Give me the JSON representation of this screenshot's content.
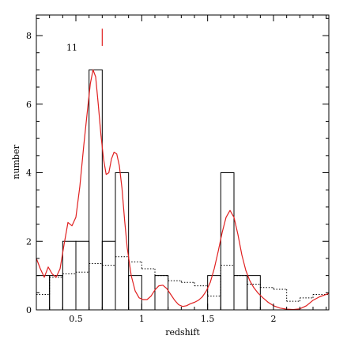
{
  "chart_data": {
    "type": "bar",
    "xlabel": "redshift",
    "ylabel": "number",
    "xlim": [
      0.2,
      2.42
    ],
    "ylim": [
      0,
      8.6
    ],
    "x_ticks": [
      0.5,
      1,
      1.5,
      2
    ],
    "x_tick_labels": [
      "0.5",
      "1",
      "1.5",
      "2"
    ],
    "y_ticks": [
      0,
      2,
      4,
      6,
      8
    ],
    "y_tick_labels": [
      "0",
      "2",
      "4",
      "6",
      "8"
    ],
    "grid": false,
    "annotation": {
      "label": "11",
      "marker_x": 0.7,
      "marker_y": [
        7.7,
        8.2
      ],
      "marker_color": "#e02020"
    },
    "series": [
      {
        "style": "solid-histogram",
        "color": "#000000",
        "bins": [
          {
            "x0": 0.2,
            "x1": 0.3,
            "value": 1
          },
          {
            "x0": 0.3,
            "x1": 0.4,
            "value": 1
          },
          {
            "x0": 0.4,
            "x1": 0.5,
            "value": 2
          },
          {
            "x0": 0.5,
            "x1": 0.6,
            "value": 2
          },
          {
            "x0": 0.6,
            "x1": 0.7,
            "value": 7
          },
          {
            "x0": 0.7,
            "x1": 0.8,
            "value": 2
          },
          {
            "x0": 0.8,
            "x1": 0.9,
            "value": 4
          },
          {
            "x0": 0.9,
            "x1": 1.0,
            "value": 1
          },
          {
            "x0": 1.0,
            "x1": 1.1,
            "value": 0
          },
          {
            "x0": 1.1,
            "x1": 1.2,
            "value": 1
          },
          {
            "x0": 1.2,
            "x1": 1.3,
            "value": 0
          },
          {
            "x0": 1.3,
            "x1": 1.4,
            "value": 0
          },
          {
            "x0": 1.4,
            "x1": 1.5,
            "value": 0
          },
          {
            "x0": 1.5,
            "x1": 1.6,
            "value": 1
          },
          {
            "x0": 1.6,
            "x1": 1.7,
            "value": 4
          },
          {
            "x0": 1.7,
            "x1": 1.8,
            "value": 1
          },
          {
            "x0": 1.8,
            "x1": 1.9,
            "value": 1
          },
          {
            "x0": 1.9,
            "x1": 2.0,
            "value": 0
          }
        ]
      },
      {
        "style": "dotted-histogram",
        "color": "#000000",
        "bins": [
          {
            "x0": 0.2,
            "x1": 0.3,
            "value": 0.45
          },
          {
            "x0": 0.3,
            "x1": 0.4,
            "value": 0.95
          },
          {
            "x0": 0.4,
            "x1": 0.5,
            "value": 1.05
          },
          {
            "x0": 0.5,
            "x1": 0.6,
            "value": 1.1
          },
          {
            "x0": 0.6,
            "x1": 0.7,
            "value": 1.35
          },
          {
            "x0": 0.7,
            "x1": 0.8,
            "value": 1.3
          },
          {
            "x0": 0.8,
            "x1": 0.9,
            "value": 1.55
          },
          {
            "x0": 0.9,
            "x1": 1.0,
            "value": 1.4
          },
          {
            "x0": 1.0,
            "x1": 1.1,
            "value": 1.2
          },
          {
            "x0": 1.1,
            "x1": 1.2,
            "value": 1.0
          },
          {
            "x0": 1.2,
            "x1": 1.3,
            "value": 0.85
          },
          {
            "x0": 1.3,
            "x1": 1.4,
            "value": 0.8
          },
          {
            "x0": 1.4,
            "x1": 1.5,
            "value": 0.7
          },
          {
            "x0": 1.5,
            "x1": 1.6,
            "value": 0.4
          },
          {
            "x0": 1.6,
            "x1": 1.7,
            "value": 1.3
          },
          {
            "x0": 1.7,
            "x1": 1.8,
            "value": 1.0
          },
          {
            "x0": 1.8,
            "x1": 1.9,
            "value": 0.75
          },
          {
            "x0": 1.9,
            "x1": 2.0,
            "value": 0.65
          },
          {
            "x0": 2.0,
            "x1": 2.1,
            "value": 0.6
          },
          {
            "x0": 2.1,
            "x1": 2.2,
            "value": 0.25
          },
          {
            "x0": 2.2,
            "x1": 2.3,
            "value": 0.35
          },
          {
            "x0": 2.3,
            "x1": 2.42,
            "value": 0.45
          }
        ]
      },
      {
        "style": "line",
        "color": "#e02020",
        "x": [
          0.2,
          0.23,
          0.26,
          0.29,
          0.32,
          0.35,
          0.38,
          0.41,
          0.44,
          0.47,
          0.5,
          0.53,
          0.56,
          0.59,
          0.61,
          0.63,
          0.65,
          0.67,
          0.69,
          0.71,
          0.73,
          0.75,
          0.77,
          0.79,
          0.81,
          0.83,
          0.85,
          0.87,
          0.89,
          0.92,
          0.95,
          0.98,
          1.01,
          1.04,
          1.07,
          1.1,
          1.13,
          1.16,
          1.19,
          1.22,
          1.25,
          1.28,
          1.31,
          1.34,
          1.37,
          1.4,
          1.43,
          1.46,
          1.49,
          1.52,
          1.55,
          1.58,
          1.61,
          1.64,
          1.67,
          1.7,
          1.73,
          1.76,
          1.79,
          1.82,
          1.85,
          1.88,
          1.92,
          1.96,
          2.0,
          2.05,
          2.1,
          2.15,
          2.2,
          2.25,
          2.3,
          2.35,
          2.42
        ],
        "y": [
          1.5,
          1.2,
          0.95,
          1.25,
          1.05,
          0.95,
          1.2,
          1.9,
          2.55,
          2.45,
          2.7,
          3.6,
          4.8,
          5.9,
          6.6,
          7.0,
          6.8,
          6.0,
          5.1,
          4.4,
          3.95,
          4.0,
          4.4,
          4.6,
          4.55,
          4.2,
          3.55,
          2.6,
          1.8,
          1.0,
          0.55,
          0.35,
          0.3,
          0.3,
          0.4,
          0.58,
          0.7,
          0.72,
          0.62,
          0.45,
          0.28,
          0.15,
          0.1,
          0.12,
          0.18,
          0.22,
          0.28,
          0.38,
          0.55,
          0.8,
          1.2,
          1.7,
          2.25,
          2.7,
          2.9,
          2.7,
          2.2,
          1.6,
          1.15,
          0.85,
          0.65,
          0.5,
          0.35,
          0.22,
          0.12,
          0.05,
          0.02,
          0.01,
          0.03,
          0.12,
          0.28,
          0.38,
          0.48
        ]
      }
    ]
  }
}
